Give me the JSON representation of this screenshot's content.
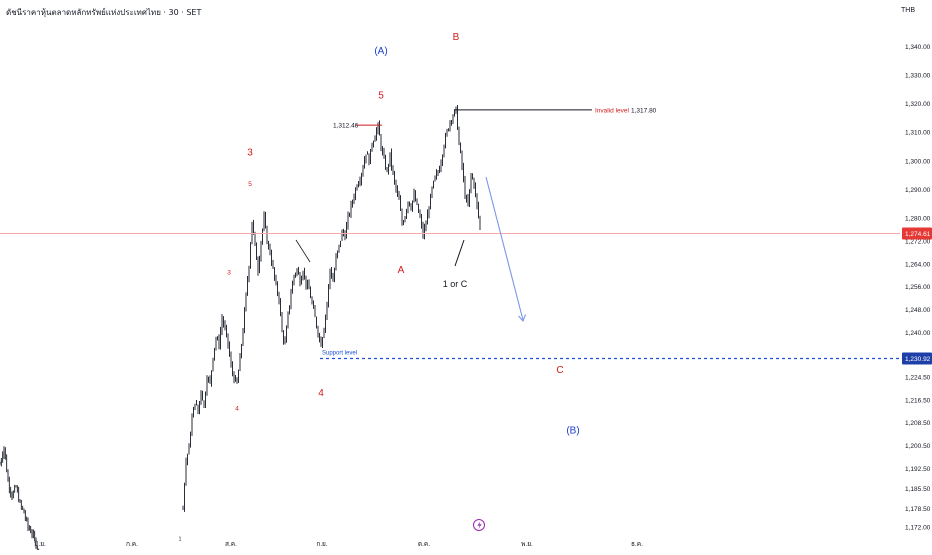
{
  "header": {
    "title": "ดัชนีราคาหุ้นตลาดหลักทรัพย์แห่งประเทศไทย · 30 · SET",
    "currency": "THB"
  },
  "chart_data": {
    "type": "candlestick",
    "ylim": [
      1164,
      1352
    ],
    "y_ticks": [
      "1,340.00",
      "1,330.00",
      "1,320.00",
      "1,310.00",
      "1,300.00",
      "1,290.00",
      "1,280.00",
      "1,272.00",
      "1,264.00",
      "1,256.00",
      "1,248.00",
      "1,240.00",
      "1,232.00",
      "1,224.50",
      "1,216.50",
      "1,208.50",
      "1,200.50",
      "1,192.50",
      "1,185.50",
      "1,178.50",
      "1,172.00"
    ],
    "x_ticks": [
      "มิ.ย.",
      "ก.ค.",
      "ส.ค.",
      "ก.ย.",
      "ต.ค.",
      "พ.ย.",
      "ธ.ค."
    ],
    "series": [
      {
        "type": "price",
        "points": [
          [
            0,
            1194
          ],
          [
            4,
            1200
          ],
          [
            8,
            1188
          ],
          [
            12,
            1183
          ],
          [
            16,
            1186
          ],
          [
            20,
            1180
          ],
          [
            24,
            1177
          ],
          [
            28,
            1172
          ],
          [
            32,
            1170
          ],
          [
            36,
            1166
          ],
          [
            40,
            1162
          ],
          [
            183,
            1180
          ],
          [
            186,
            1195
          ],
          [
            189,
            1200
          ],
          [
            192,
            1210
          ],
          [
            195,
            1216
          ],
          [
            198,
            1212
          ],
          [
            201,
            1220
          ],
          [
            204,
            1214
          ],
          [
            207,
            1225
          ],
          [
            210,
            1222
          ],
          [
            213,
            1232
          ],
          [
            216,
            1238
          ],
          [
            219,
            1236
          ],
          [
            222,
            1245
          ],
          [
            225,
            1241
          ],
          [
            228,
            1236
          ],
          [
            231,
            1228
          ],
          [
            234,
            1224
          ],
          [
            237,
            1222
          ],
          [
            240,
            1231
          ],
          [
            243,
            1241
          ],
          [
            246,
            1253
          ],
          [
            249,
            1264
          ],
          [
            252,
            1279
          ],
          [
            255,
            1270
          ],
          [
            258,
            1262
          ],
          [
            261,
            1272
          ],
          [
            264,
            1280
          ],
          [
            267,
            1272
          ],
          [
            270,
            1268
          ],
          [
            273,
            1262
          ],
          [
            276,
            1256
          ],
          [
            279,
            1252
          ],
          [
            282,
            1240
          ],
          [
            285,
            1236
          ],
          [
            288,
            1246
          ],
          [
            291,
            1254
          ],
          [
            294,
            1260
          ],
          [
            297,
            1262
          ],
          [
            300,
            1258
          ],
          [
            303,
            1262
          ],
          [
            306,
            1257
          ],
          [
            309,
            1255
          ],
          [
            312,
            1250
          ],
          [
            315,
            1245
          ],
          [
            318,
            1240
          ],
          [
            321,
            1236
          ],
          [
            324,
            1242
          ],
          [
            327,
            1250
          ],
          [
            330,
            1262
          ],
          [
            333,
            1258
          ],
          [
            336,
            1266
          ],
          [
            339,
            1270
          ],
          [
            342,
            1275
          ],
          [
            345,
            1274
          ],
          [
            348,
            1280
          ],
          [
            351,
            1284
          ],
          [
            354,
            1288
          ],
          [
            357,
            1292
          ],
          [
            360,
            1294
          ],
          [
            363,
            1298
          ],
          [
            366,
            1303
          ],
          [
            369,
            1300
          ],
          [
            372,
            1306
          ],
          [
            375,
            1309
          ],
          [
            378,
            1312
          ],
          [
            381,
            1305
          ],
          [
            384,
            1300
          ],
          [
            387,
            1296
          ],
          [
            390,
            1302
          ],
          [
            393,
            1295
          ],
          [
            396,
            1290
          ],
          [
            399,
            1286
          ],
          [
            402,
            1278
          ],
          [
            405,
            1281
          ],
          [
            408,
            1286
          ],
          [
            411,
            1284
          ],
          [
            414,
            1288
          ],
          [
            417,
            1284
          ],
          [
            420,
            1280
          ],
          [
            423,
            1274
          ],
          [
            426,
            1278
          ],
          [
            429,
            1284
          ],
          [
            432,
            1290
          ],
          [
            435,
            1294
          ],
          [
            438,
            1296
          ],
          [
            441,
            1300
          ],
          [
            444,
            1306
          ],
          [
            447,
            1310
          ],
          [
            450,
            1314
          ],
          [
            453,
            1316
          ],
          [
            456,
            1317.8
          ],
          [
            459,
            1306
          ],
          [
            462,
            1298
          ],
          [
            465,
            1288
          ],
          [
            468,
            1284
          ],
          [
            471,
            1295
          ],
          [
            474,
            1292
          ],
          [
            477,
            1284
          ],
          [
            480,
            1277
          ]
        ]
      }
    ],
    "annotations": {
      "current_price": "1,274.61",
      "support_price": "1,230.92",
      "invalid_label": "Invalid level",
      "invalid_price": "1,317.80",
      "high_label": "1,312.46",
      "support_label": "Support level",
      "waves": [
        {
          "text": "(A)",
          "price": 1338.5,
          "color": "#1a3fcf"
        },
        {
          "text": "B",
          "price": 1343.5,
          "color": "#d11b1b"
        },
        {
          "text": "5",
          "price": 1323,
          "color": "#d11b1b"
        },
        {
          "text": "3",
          "price": 1303,
          "color": "#d11b1b"
        },
        {
          "text": "A",
          "price": 1262,
          "color": "#d11b1b"
        },
        {
          "text": "1 or C",
          "price": 1257,
          "color": "#131722"
        },
        {
          "text": "4",
          "price": 1219,
          "color": "#d11b1b"
        },
        {
          "text": "C",
          "price": 1227,
          "color": "#d11b1b"
        },
        {
          "text": "(B)",
          "price": 1206,
          "color": "#1a3fcf"
        },
        {
          "text": "5",
          "price": 1292,
          "color": "#d11b1b"
        },
        {
          "text": "3",
          "price": 1261,
          "color": "#d11b1b"
        },
        {
          "text": "4",
          "price": 1213.5,
          "color": "#d11b1b"
        },
        {
          "text": "1",
          "price": 1168,
          "color": "#131722"
        }
      ]
    },
    "colors": {
      "candle": "#131722",
      "current_line": "#f6a9a9",
      "current_badge": "#e53935",
      "support_line": "#1e4fd8",
      "support_badge": "#1e3fa8",
      "wave_red": "#d11b1b",
      "wave_blue": "#1a3fcf",
      "arrow": "#7d96e6",
      "event_icon": "#9c27b0"
    }
  }
}
